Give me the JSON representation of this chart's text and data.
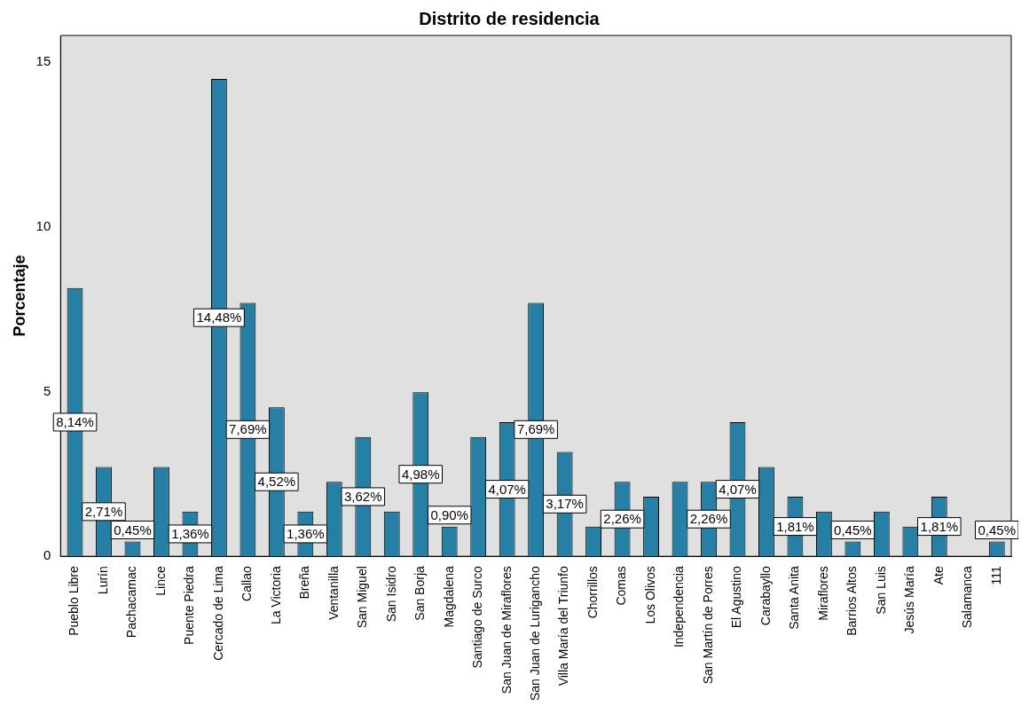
{
  "chart_data": {
    "type": "bar",
    "title": "Distrito de residencia",
    "ylabel": "Porcentaje",
    "categories": [
      "Pueblo Libre",
      "Lurín",
      "Pachacamac",
      "Lince",
      "Puente Piedra",
      "Cercado de Lima",
      "Callao",
      "La Victoria",
      "Breña",
      "Ventanilla",
      "San Miguel",
      "San Isidro",
      "San Borja",
      "Magdalena",
      "Santiago de Surco",
      "San Juan de Miraflores",
      "San Juan de Lurigancho",
      "Villa María del Triunfo",
      "Chorrillos",
      "Comas",
      "Los Olivos",
      "Independencia",
      "San Martín de Porres",
      "El Agustino",
      "Carabayllo",
      "Santa Anita",
      "Miraflores",
      "Barrios Altos",
      "San Luis",
      "Jesús María",
      "Ate",
      "Salamanca",
      "111"
    ],
    "values": [
      8.14,
      2.71,
      0.45,
      2.71,
      1.36,
      14.48,
      7.69,
      4.52,
      1.36,
      2.26,
      3.62,
      1.36,
      4.98,
      0.9,
      3.62,
      4.07,
      7.69,
      3.17,
      0.9,
      2.26,
      1.81,
      2.26,
      2.26,
      4.07,
      2.71,
      1.81,
      1.36,
      0.45,
      1.36,
      0.9,
      1.81,
      null,
      0.45
    ],
    "value_labels": [
      "8,14%",
      "2,71%",
      "0,45%",
      null,
      "1,36%",
      "14,48%",
      "7,69%",
      "4,52%",
      "1,36%",
      null,
      "3,62%",
      null,
      "4,98%",
      "0,90%",
      null,
      "4,07%",
      "7,69%",
      "3,17%",
      null,
      "2,26%",
      null,
      null,
      "2,26%",
      "4,07%",
      null,
      "1,81%",
      null,
      "0,45%",
      null,
      null,
      "1,81%",
      null,
      "0,45%"
    ],
    "color": "#2680a6",
    "ylim": [
      0,
      15.8
    ],
    "yticks": [
      0,
      5,
      10,
      15
    ],
    "grid": false,
    "legend": false
  }
}
